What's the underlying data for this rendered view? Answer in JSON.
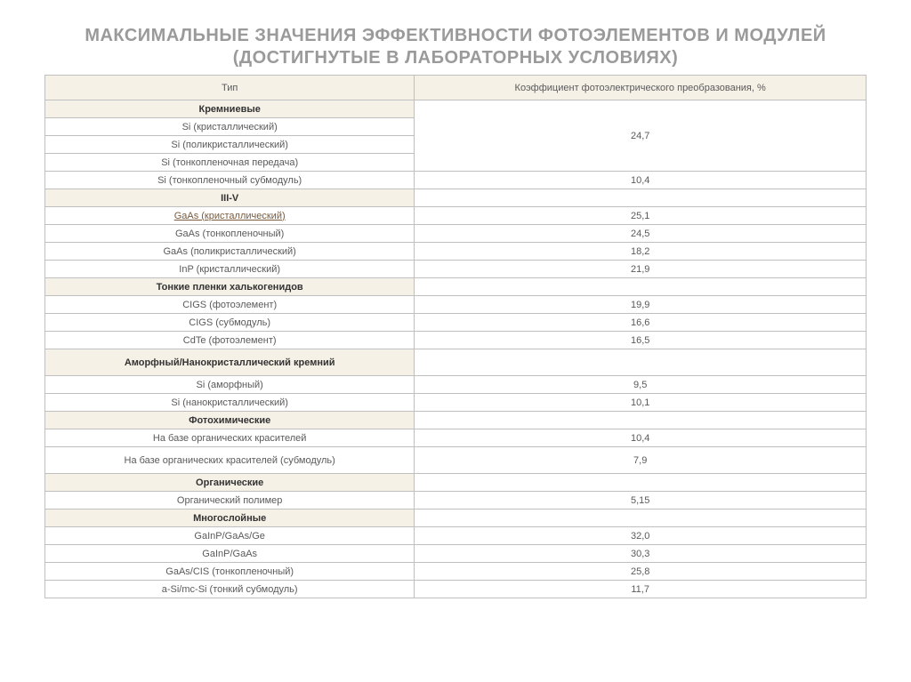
{
  "title_line1": "МАКСИМАЛЬНЫЕ ЗНАЧЕНИЯ ЭФФЕКТИВНОСТИ ФОТОЭЛЕМЕНТОВ И МОДУЛЕЙ",
  "title_line2": "(ДОСТИГНУТЫЕ В ЛАБОРАТОРНЫХ УСЛОВИЯХ)",
  "headers": {
    "type": "Тип",
    "coeff": "Коэффициент фотоэлектрического преобразования, %"
  },
  "sections": {
    "silicon": {
      "name": "Кремниевые",
      "merged_value": "24,7",
      "rows": [
        {
          "label": "Si (кристаллический)"
        },
        {
          "label": "Si (поликристаллический)"
        },
        {
          "label": "Si (тонкопленочная передача)"
        }
      ],
      "extra": {
        "label": "Si (тонкопленочный субмодуль)",
        "value": "10,4"
      }
    },
    "iii_v": {
      "name": "III-V",
      "rows": [
        {
          "label": "GaAs (кристаллический)",
          "value": "25,1",
          "link": true
        },
        {
          "label": "GaAs (тонкопленочный)",
          "value": "24,5"
        },
        {
          "label": "GaAs (поликристаллический)",
          "value": "18,2"
        },
        {
          "label": "InP (кристаллический)",
          "value": "21,9"
        }
      ]
    },
    "chalcogenide": {
      "name": "Тонкие пленки халькогенидов",
      "rows": [
        {
          "label": "CIGS (фотоэлемент)",
          "value": "19,9"
        },
        {
          "label": "CIGS (субмодуль)",
          "value": "16,6"
        },
        {
          "label": "CdTe (фотоэлемент)",
          "value": "16,5"
        }
      ]
    },
    "amorphous": {
      "name": "Аморфный/Нанокристаллический кремний",
      "rows": [
        {
          "label": "Si (аморфный)",
          "value": "9,5"
        },
        {
          "label": "Si (нанокристаллический)",
          "value": "10,1"
        }
      ]
    },
    "photochem": {
      "name": "Фотохимические",
      "rows": [
        {
          "label": "На базе органических красителей",
          "value": "10,4"
        },
        {
          "label": "На базе органических красителей (субмодуль)",
          "value": "7,9"
        }
      ]
    },
    "organic": {
      "name": "Органические",
      "rows": [
        {
          "label": "Органический полимер",
          "value": "5,15"
        }
      ]
    },
    "multilayer": {
      "name": "Многослойные",
      "rows": [
        {
          "label": "GaInP/GaAs/Ge",
          "value": "32,0"
        },
        {
          "label": "GaInP/GaAs",
          "value": "30,3"
        },
        {
          "label": "GaAs/CIS (тонкопленочный)",
          "value": "25,8"
        },
        {
          "label": "a-Si/mc-Si (тонкий субмодуль)",
          "value": "11,7"
        }
      ]
    }
  },
  "styling": {
    "header_bg": "#f6f1e7",
    "border_color": "#bfbfbf",
    "title_color": "#9a9a9a",
    "text_color": "#5a5a5a",
    "link_color": "#7a5a3c",
    "font_size_body": 11,
    "font_size_title": 20
  }
}
